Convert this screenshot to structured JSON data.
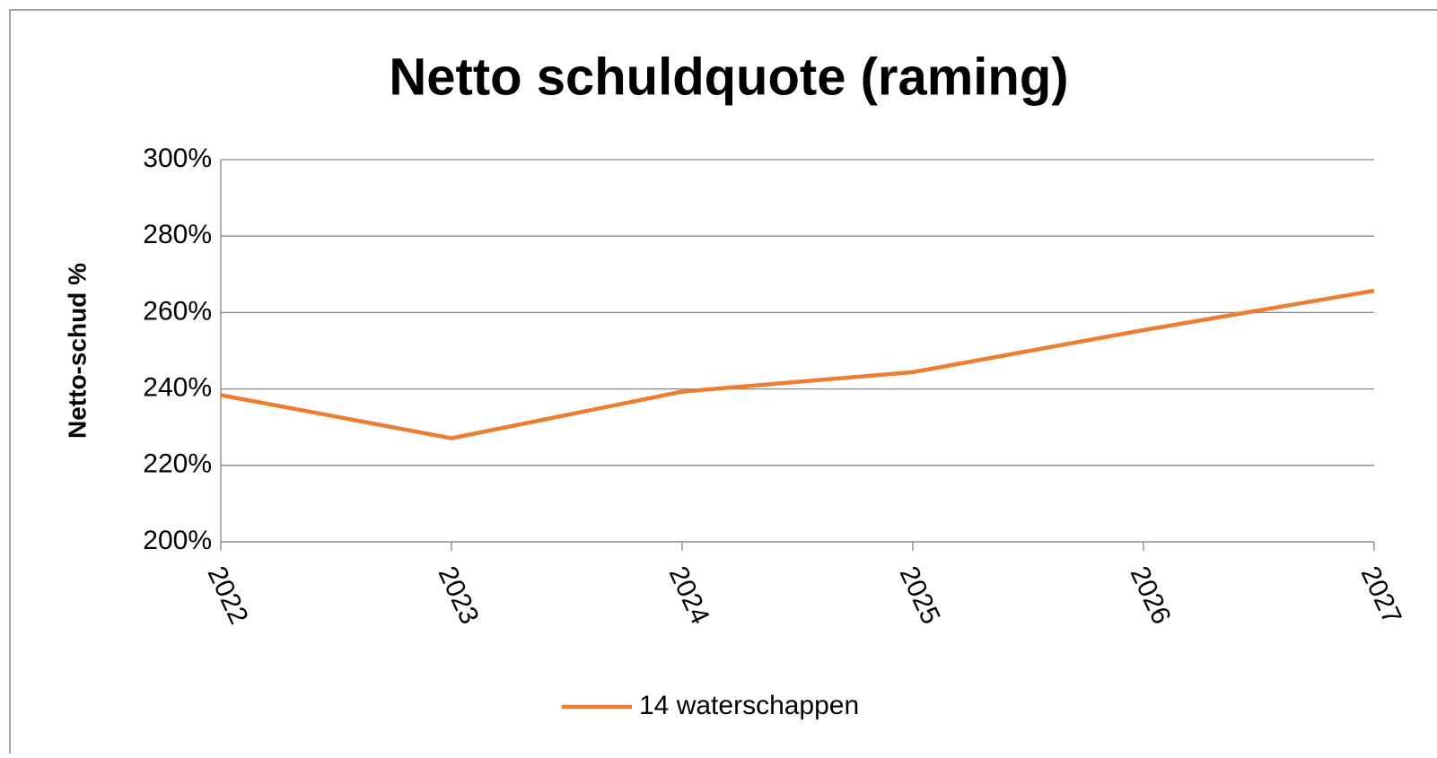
{
  "chart_data": {
    "type": "line",
    "title": "Netto schuldquote (raming)",
    "y_label": "Netto-schud %",
    "categories": [
      "2022",
      "2023",
      "2024",
      "2025",
      "2026",
      "2027"
    ],
    "series": [
      {
        "name": "14 waterschappen",
        "color": "#ed7d31",
        "values": [
          238.4,
          227.1,
          239.3,
          244.4,
          255.4,
          265.7
        ]
      }
    ],
    "ylim": [
      200,
      300
    ],
    "yticks": [
      {
        "value": 200,
        "label": "200%"
      },
      {
        "value": 220,
        "label": "220%"
      },
      {
        "value": 240,
        "label": "240%"
      },
      {
        "value": 260,
        "label": "260%"
      },
      {
        "value": 280,
        "label": "280%"
      },
      {
        "value": 300,
        "label": "300%"
      }
    ],
    "grid": true,
    "legend": "bottom"
  }
}
